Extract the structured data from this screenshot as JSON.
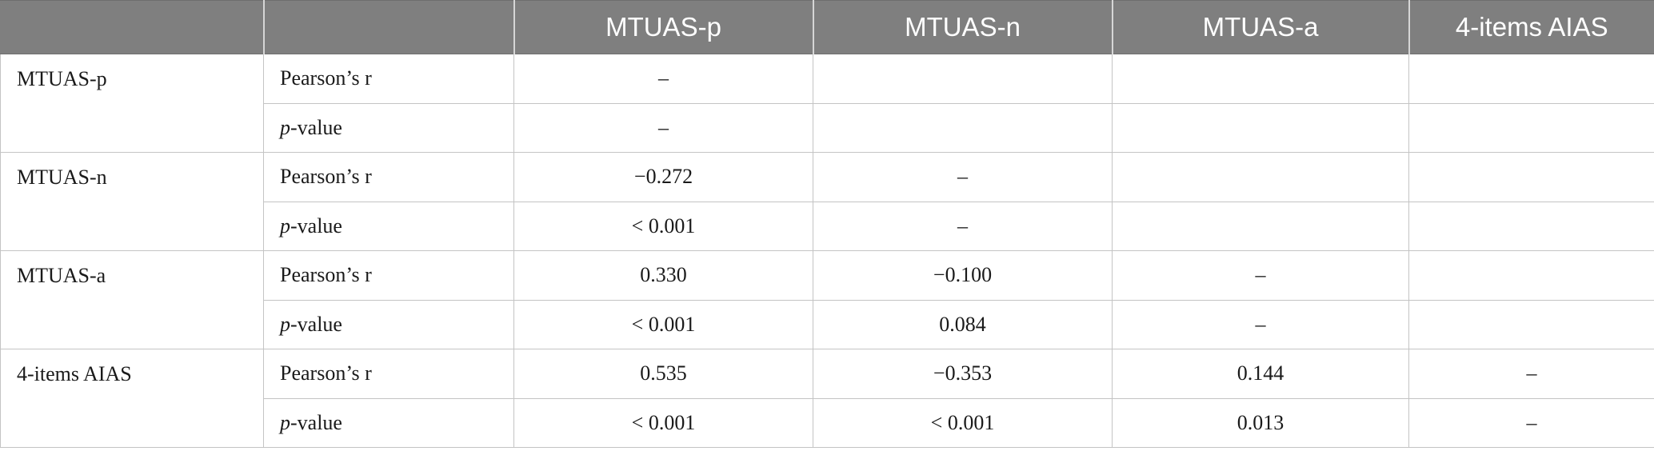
{
  "table": {
    "header": {
      "blank_1": "",
      "blank_2": "",
      "col_mtuas_p": "MTUAS-p",
      "col_mtuas_n": "MTUAS-n",
      "col_mtuas_a": "MTUAS-a",
      "col_aias": "4-items AIAS"
    },
    "stat_labels": {
      "pearson": "Pearson’s r",
      "p_italic": "p",
      "p_rest": "-value"
    },
    "rows": [
      {
        "variable": "MTUAS-p",
        "pearson": [
          "–",
          "",
          "",
          ""
        ],
        "pvalue": [
          "–",
          "",
          "",
          ""
        ]
      },
      {
        "variable": "MTUAS-n",
        "pearson": [
          "−0.272",
          "–",
          "",
          ""
        ],
        "pvalue": [
          "< 0.001",
          "–",
          "",
          ""
        ]
      },
      {
        "variable": "MTUAS-a",
        "pearson": [
          "0.330",
          "−0.100",
          "–",
          ""
        ],
        "pvalue": [
          "< 0.001",
          "0.084",
          "–",
          ""
        ]
      },
      {
        "variable": "4-items AIAS",
        "pearson": [
          "0.535",
          "−0.353",
          "0.144",
          "–"
        ],
        "pvalue": [
          "< 0.001",
          "< 0.001",
          "0.013",
          "–"
        ]
      }
    ]
  }
}
